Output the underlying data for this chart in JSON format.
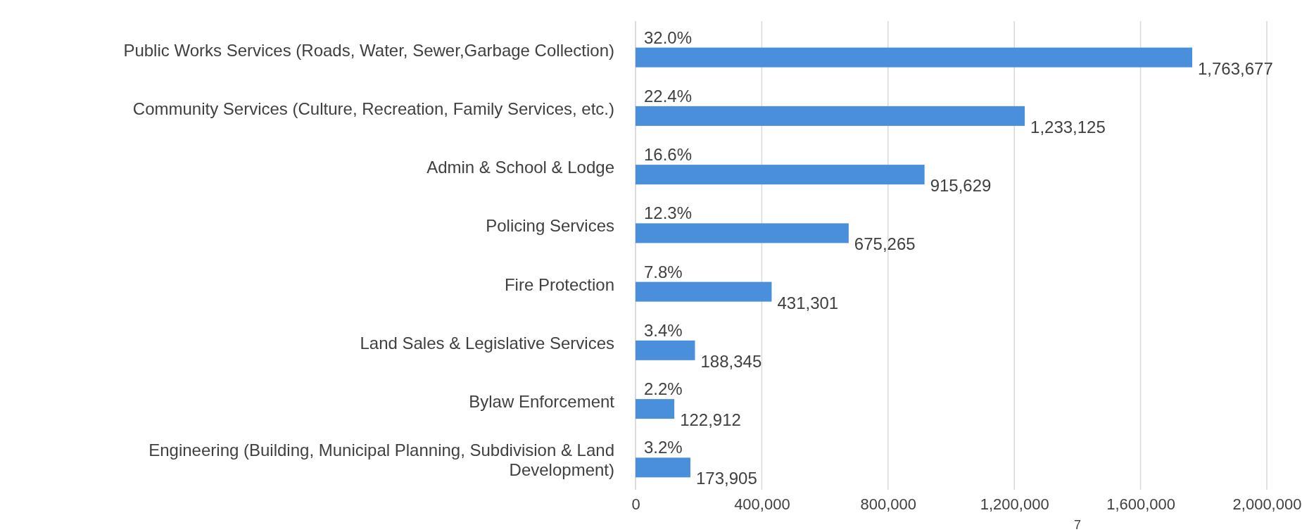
{
  "chart_data": {
    "type": "bar",
    "orientation": "horizontal",
    "categories": [
      "Public Works Services (Roads, Water, Sewer,Garbage Collection)",
      "Community Services (Culture, Recreation, Family Services, etc.)",
      "Admin & School & Lodge",
      "Policing Services",
      "Fire Protection",
      "Land Sales & Legislative Services",
      "Bylaw Enforcement",
      "Engineering (Building, Municipal Planning, Subdivision & Land Development)"
    ],
    "values": [
      1763677,
      1233125,
      915629,
      675265,
      431301,
      188345,
      122912,
      173905
    ],
    "color": "#4a8fdb",
    "value_labels": [
      "1,763,677",
      "1,233,125",
      "915,629",
      "675,265",
      "431,301",
      "188,345",
      "122,912",
      "173,905"
    ],
    "xlim": [
      0,
      2000000
    ],
    "xticks": [
      {
        "value": 0,
        "label": "0"
      },
      {
        "value": 400000,
        "label": "400,000"
      },
      {
        "value": 800000,
        "label": "800,000"
      },
      {
        "value": 1200000,
        "label": "1,200,000"
      },
      {
        "value": 1600000,
        "label": "1,600,000"
      },
      {
        "value": 2000000,
        "label": "2,000,000"
      }
    ],
    "grid": "x",
    "annotations": [
      {
        "text": "32.0%",
        "y": "Public Works Services (Roads, Water, Sewer,Garbage Collection)"
      },
      {
        "text": "22.4%",
        "y": "Community Services (Culture, Recreation, Family Services, etc.)"
      },
      {
        "text": "16.6%",
        "y": "Admin & School & Lodge"
      },
      {
        "text": "12.3%",
        "y": "Policing Services"
      },
      {
        "text": "7.8%",
        "y": "Fire Protection"
      },
      {
        "text": "3.4%",
        "y": "Land Sales & Legislative Services"
      },
      {
        "text": "2.2%",
        "y": "Bylaw Enforcement"
      },
      {
        "text": "3.2%",
        "y": "Engineering (Building, Municipal Planning, Subdivision & Land Development)"
      },
      "7"
    ]
  }
}
